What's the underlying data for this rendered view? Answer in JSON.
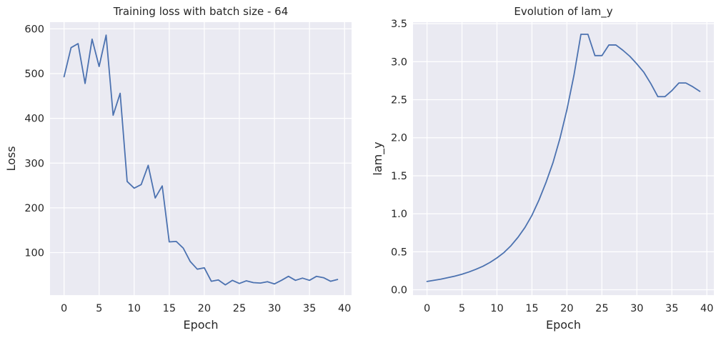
{
  "chart_data": [
    {
      "type": "line",
      "title": "Training loss with batch size - 64",
      "xlabel": "Epoch",
      "ylabel": "Loss",
      "xlim": [
        -2,
        41
      ],
      "ylim": [
        5,
        615
      ],
      "xticks": [
        0,
        5,
        10,
        15,
        20,
        25,
        30,
        35,
        40
      ],
      "yticks": [
        100,
        200,
        300,
        400,
        500,
        600
      ],
      "grid": true,
      "line_color": "#4c72b0",
      "x": [
        0,
        1,
        2,
        3,
        4,
        5,
        6,
        7,
        8,
        9,
        10,
        11,
        12,
        13,
        14,
        15,
        16,
        17,
        18,
        19,
        20,
        21,
        22,
        23,
        24,
        25,
        26,
        27,
        28,
        29,
        30,
        31,
        32,
        33,
        34,
        35,
        36,
        37,
        38,
        39
      ],
      "y": [
        493,
        558,
        567,
        478,
        577,
        516,
        586,
        407,
        456,
        259,
        244,
        252,
        295,
        222,
        249,
        124,
        125,
        110,
        80,
        63,
        66,
        36,
        39,
        28,
        38,
        31,
        37,
        33,
        32,
        35,
        30,
        38,
        47,
        38,
        43,
        38,
        47,
        44,
        36,
        40
      ]
    },
    {
      "type": "line",
      "title": "Evolution of lam_y",
      "xlabel": "Epoch",
      "ylabel": "lam_y",
      "xlim": [
        -2,
        41
      ],
      "ylim": [
        -0.07,
        3.52
      ],
      "xticks": [
        0,
        5,
        10,
        15,
        20,
        25,
        30,
        35,
        40
      ],
      "yticks": [
        0.0,
        0.5,
        1.0,
        1.5,
        2.0,
        2.5,
        3.0,
        3.5
      ],
      "grid": true,
      "line_color": "#4c72b0",
      "x": [
        0,
        1,
        2,
        3,
        4,
        5,
        6,
        7,
        8,
        9,
        10,
        11,
        12,
        13,
        14,
        15,
        16,
        17,
        18,
        19,
        20,
        21,
        22,
        23,
        24,
        25,
        26,
        27,
        28,
        29,
        30,
        31,
        32,
        33,
        34,
        35,
        36,
        37,
        38,
        39
      ],
      "y": [
        0.11,
        0.125,
        0.14,
        0.16,
        0.18,
        0.205,
        0.235,
        0.27,
        0.31,
        0.36,
        0.42,
        0.49,
        0.58,
        0.69,
        0.82,
        0.98,
        1.18,
        1.41,
        1.67,
        1.99,
        2.37,
        2.82,
        3.36,
        3.36,
        3.08,
        3.08,
        3.22,
        3.22,
        3.15,
        3.07,
        2.97,
        2.86,
        2.71,
        2.54,
        2.54,
        2.62,
        2.72,
        2.72,
        2.67,
        2.61
      ]
    }
  ]
}
